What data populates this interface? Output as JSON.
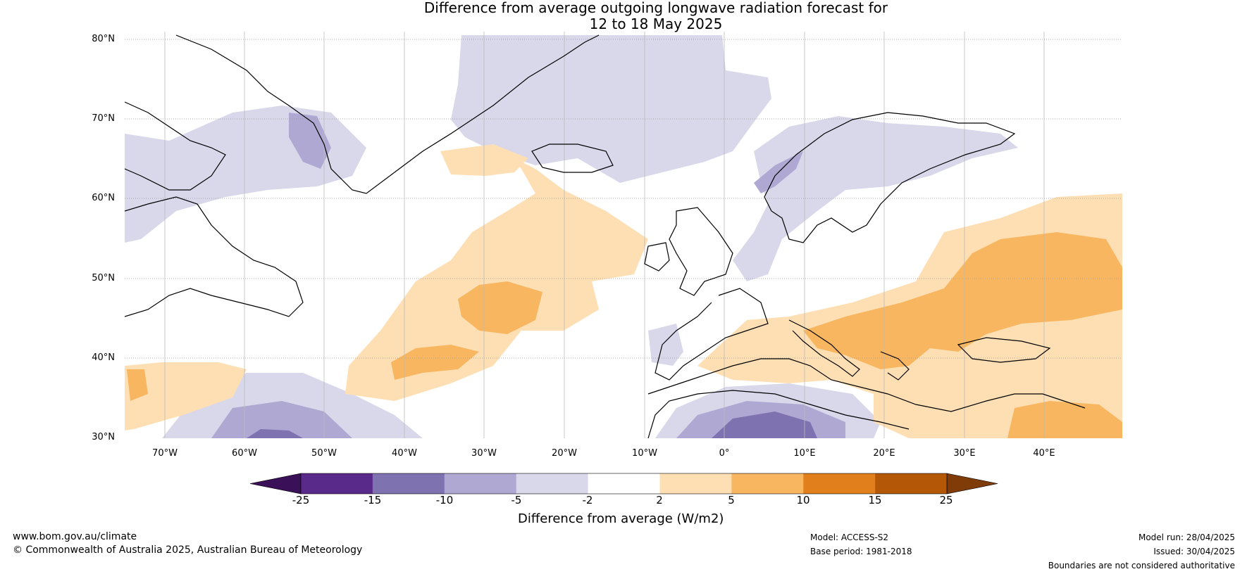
{
  "title": {
    "line1": "Difference from average outgoing longwave radiation forecast for",
    "line2": "12 to 18 May 2025"
  },
  "map": {
    "lat_labels": [
      "80°N",
      "70°N",
      "60°N",
      "50°N",
      "40°N",
      "30°N"
    ],
    "lon_labels": [
      "70°W",
      "60°W",
      "50°W",
      "40°W",
      "30°W",
      "20°W",
      "10°W",
      "0°",
      "10°E",
      "20°E",
      "30°E",
      "40°E"
    ]
  },
  "colorbar": {
    "ticks": [
      "-25",
      "-15",
      "-10",
      "-5",
      "-2",
      "2",
      "5",
      "10",
      "15",
      "25"
    ],
    "colors": [
      "#3a1058",
      "#5a2a8a",
      "#7e72b0",
      "#afa8d2",
      "#d8d8ea",
      "#ffffff",
      "#fddfb3",
      "#f9b660",
      "#e07f1b",
      "#b45808",
      "#7f3b08"
    ],
    "label": "Difference from average (W/m2)"
  },
  "footer": {
    "website": "www.bom.gov.au/climate",
    "copyright": "© Commonwealth of Australia 2025, Australian Bureau of Meteorology",
    "model": "Model: ACCESS-S2",
    "base_period": "Base period: 1981-2018",
    "model_run": "Model run: 28/04/2025",
    "issued": "Issued: 30/04/2025",
    "disclaimer": "Boundaries are not considered authoritative"
  }
}
